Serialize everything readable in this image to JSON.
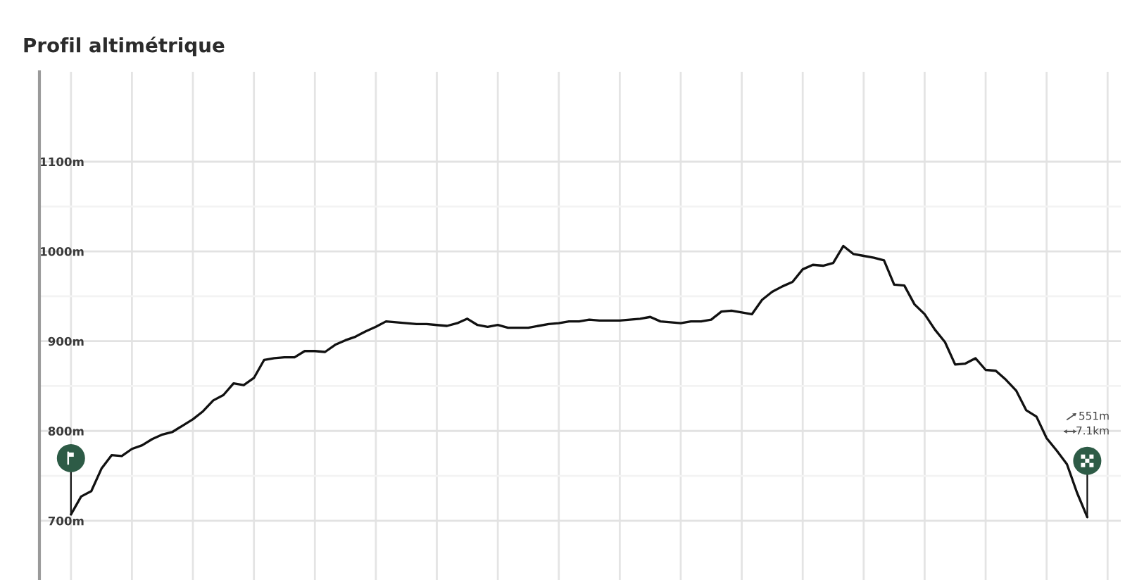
{
  "chart_data": {
    "type": "line",
    "title": "Profil altimétrique",
    "categories": [
      null,
      null,
      null,
      null,
      null,
      null,
      null,
      null,
      null,
      null,
      null,
      null,
      null,
      null,
      null,
      null,
      null,
      null,
      null,
      null,
      null,
      null,
      null,
      null,
      null,
      null,
      null,
      null,
      null,
      null,
      null,
      null,
      null,
      null,
      null,
      null,
      null,
      null,
      null,
      null,
      null,
      null,
      null,
      null,
      null,
      null,
      null,
      null,
      null,
      null,
      null,
      null,
      null,
      null,
      null,
      null,
      null,
      null,
      null,
      null,
      null,
      null,
      null,
      null,
      null,
      null,
      null,
      null,
      null,
      null,
      null,
      null,
      null,
      null,
      null,
      null,
      null,
      null,
      null,
      null,
      null,
      null,
      null,
      null,
      null,
      null,
      null,
      null,
      null,
      null,
      null,
      null,
      null,
      null,
      null,
      null,
      null,
      null,
      null,
      null,
      null
    ],
    "series": [
      {
        "color": "#111111",
        "values": [
          707,
          727,
          733,
          758,
          773,
          772,
          780,
          784,
          791,
          796,
          799,
          806,
          813,
          822,
          834,
          840,
          853,
          851,
          859,
          879,
          881,
          882,
          882,
          889,
          889,
          888,
          896,
          901,
          905,
          911,
          916,
          922,
          921,
          920,
          919,
          919,
          918,
          917,
          920,
          925,
          918,
          916,
          918,
          915,
          915,
          915,
          917,
          919,
          920,
          922,
          922,
          924,
          923,
          923,
          923,
          924,
          925,
          927,
          922,
          921,
          920,
          922,
          922,
          924,
          933,
          934,
          932,
          930,
          946,
          955,
          961,
          966,
          980,
          985,
          984,
          987,
          1006,
          997,
          995,
          993,
          990,
          963,
          962,
          941,
          930,
          913,
          899,
          874,
          875,
          881,
          868,
          867,
          857,
          845,
          823,
          816,
          792,
          778,
          763,
          731,
          704
        ]
      }
    ],
    "ylim": [
      634,
      1200
    ],
    "yticks": [
      {
        "value": 700,
        "label": "700m"
      },
      {
        "value": 750,
        "label": null
      },
      {
        "value": 800,
        "label": "800m"
      },
      {
        "value": 850,
        "label": null
      },
      {
        "value": 900,
        "label": "900m"
      },
      {
        "value": 950,
        "label": null
      },
      {
        "value": 1000,
        "label": "1000m"
      },
      {
        "value": 1050,
        "label": null
      },
      {
        "value": 1100,
        "label": "1100m"
      }
    ],
    "grid": true,
    "tick_labels": "y",
    "marker": "none",
    "line_style": "solid",
    "annotations": [
      "551m",
      "7.1km"
    ]
  }
}
